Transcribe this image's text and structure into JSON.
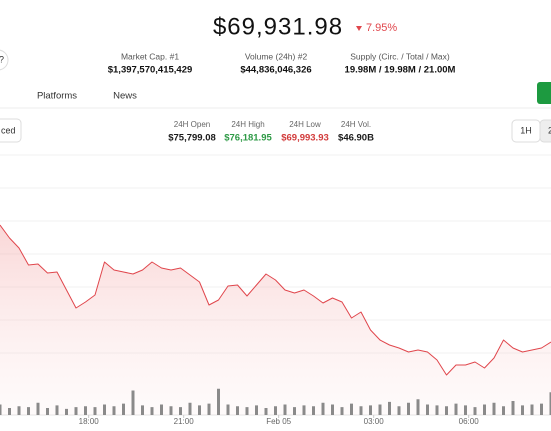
{
  "header": {
    "price": "$69,931.98",
    "change": "7.95%",
    "help": "?"
  },
  "stats": [
    {
      "label": "Market Cap. #1",
      "value": "$1,397,570,415,429"
    },
    {
      "label": "Volume (24h) #2",
      "value": "$44,836,046,326"
    },
    {
      "label": "Supply (Circ. / Total / Max)",
      "value": "19.98M / 19.98M / 21.00M"
    }
  ],
  "tabs": [
    "Platforms",
    "News"
  ],
  "left_button": "ced",
  "day_stats": [
    {
      "label": "24H Open",
      "value": "$75,799.08",
      "color": "#1a1a1a"
    },
    {
      "label": "24H High",
      "value": "$76,181.95",
      "color": "#2e9a46"
    },
    {
      "label": "24H Low",
      "value": "$69,993.93",
      "color": "#d23a3a"
    },
    {
      "label": "24H Vol.",
      "value": "$46.90B",
      "color": "#1a1a1a"
    }
  ],
  "intervals": [
    "1H",
    "2"
  ],
  "chart_data": {
    "type": "area",
    "x": [
      0.2,
      0.5,
      0.8,
      1.1,
      1.4,
      1.7,
      2.0,
      2.3,
      2.6,
      2.9,
      3.2,
      3.5,
      3.8,
      4.1,
      4.4,
      4.7,
      5.0,
      5.3,
      5.6,
      5.9,
      6.2,
      6.5,
      6.8,
      7.1,
      7.4,
      7.7,
      8.0,
      8.3,
      8.6,
      8.9,
      9.2,
      9.5,
      9.8,
      10.1,
      10.4,
      10.7,
      11.0,
      11.3,
      11.6,
      11.9,
      12.2,
      12.5,
      12.8,
      13.1,
      13.4,
      13.7,
      14.0,
      14.3,
      14.6,
      14.9,
      15.2,
      15.5,
      15.8,
      16.1,
      16.4,
      16.7,
      17.0,
      17.3,
      17.6
    ],
    "series": [
      {
        "color": "#e0464c",
        "values": [
          75900,
          75380,
          74980,
          74300,
          74340,
          73980,
          74020,
          73300,
          72580,
          72820,
          73100,
          74420,
          74100,
          74020,
          73940,
          74100,
          74420,
          74180,
          74100,
          74180,
          73900,
          73620,
          72700,
          72900,
          73460,
          73500,
          73060,
          73500,
          73940,
          73700,
          73300,
          73180,
          73300,
          73060,
          72780,
          72980,
          72820,
          72180,
          72420,
          71700,
          71300,
          71100,
          70980,
          70820,
          70900,
          70820,
          70500,
          69900,
          70300,
          70300,
          70420,
          70180,
          70580,
          71300,
          70980,
          70820,
          70900,
          70980,
          71220
        ]
      }
    ],
    "volume": {
      "color": "#8a8a8a",
      "ylim": [
        0,
        40
      ],
      "values": [
        12,
        8,
        10,
        9,
        14,
        8,
        11,
        7,
        9,
        10,
        9,
        12,
        10,
        13,
        28,
        11,
        9,
        12,
        10,
        9,
        14,
        11,
        13,
        30,
        12,
        10,
        9,
        11,
        8,
        10,
        12,
        9,
        11,
        10,
        14,
        12,
        9,
        13,
        10,
        11,
        12,
        15,
        10,
        14,
        18,
        12,
        11,
        10,
        13,
        11,
        9,
        12,
        14,
        10,
        16,
        11,
        12,
        13,
        26
      ]
    },
    "xlim": [
      0.2,
      17.6
    ],
    "ylim": [
      68300,
      78700
    ],
    "xticks": [
      {
        "value": 3,
        "label": "18:00"
      },
      {
        "value": 6,
        "label": "21:00"
      },
      {
        "value": 9,
        "label": "Feb 05"
      },
      {
        "value": 12,
        "label": "03:00"
      },
      {
        "value": 15,
        "label": "06:00"
      }
    ]
  }
}
